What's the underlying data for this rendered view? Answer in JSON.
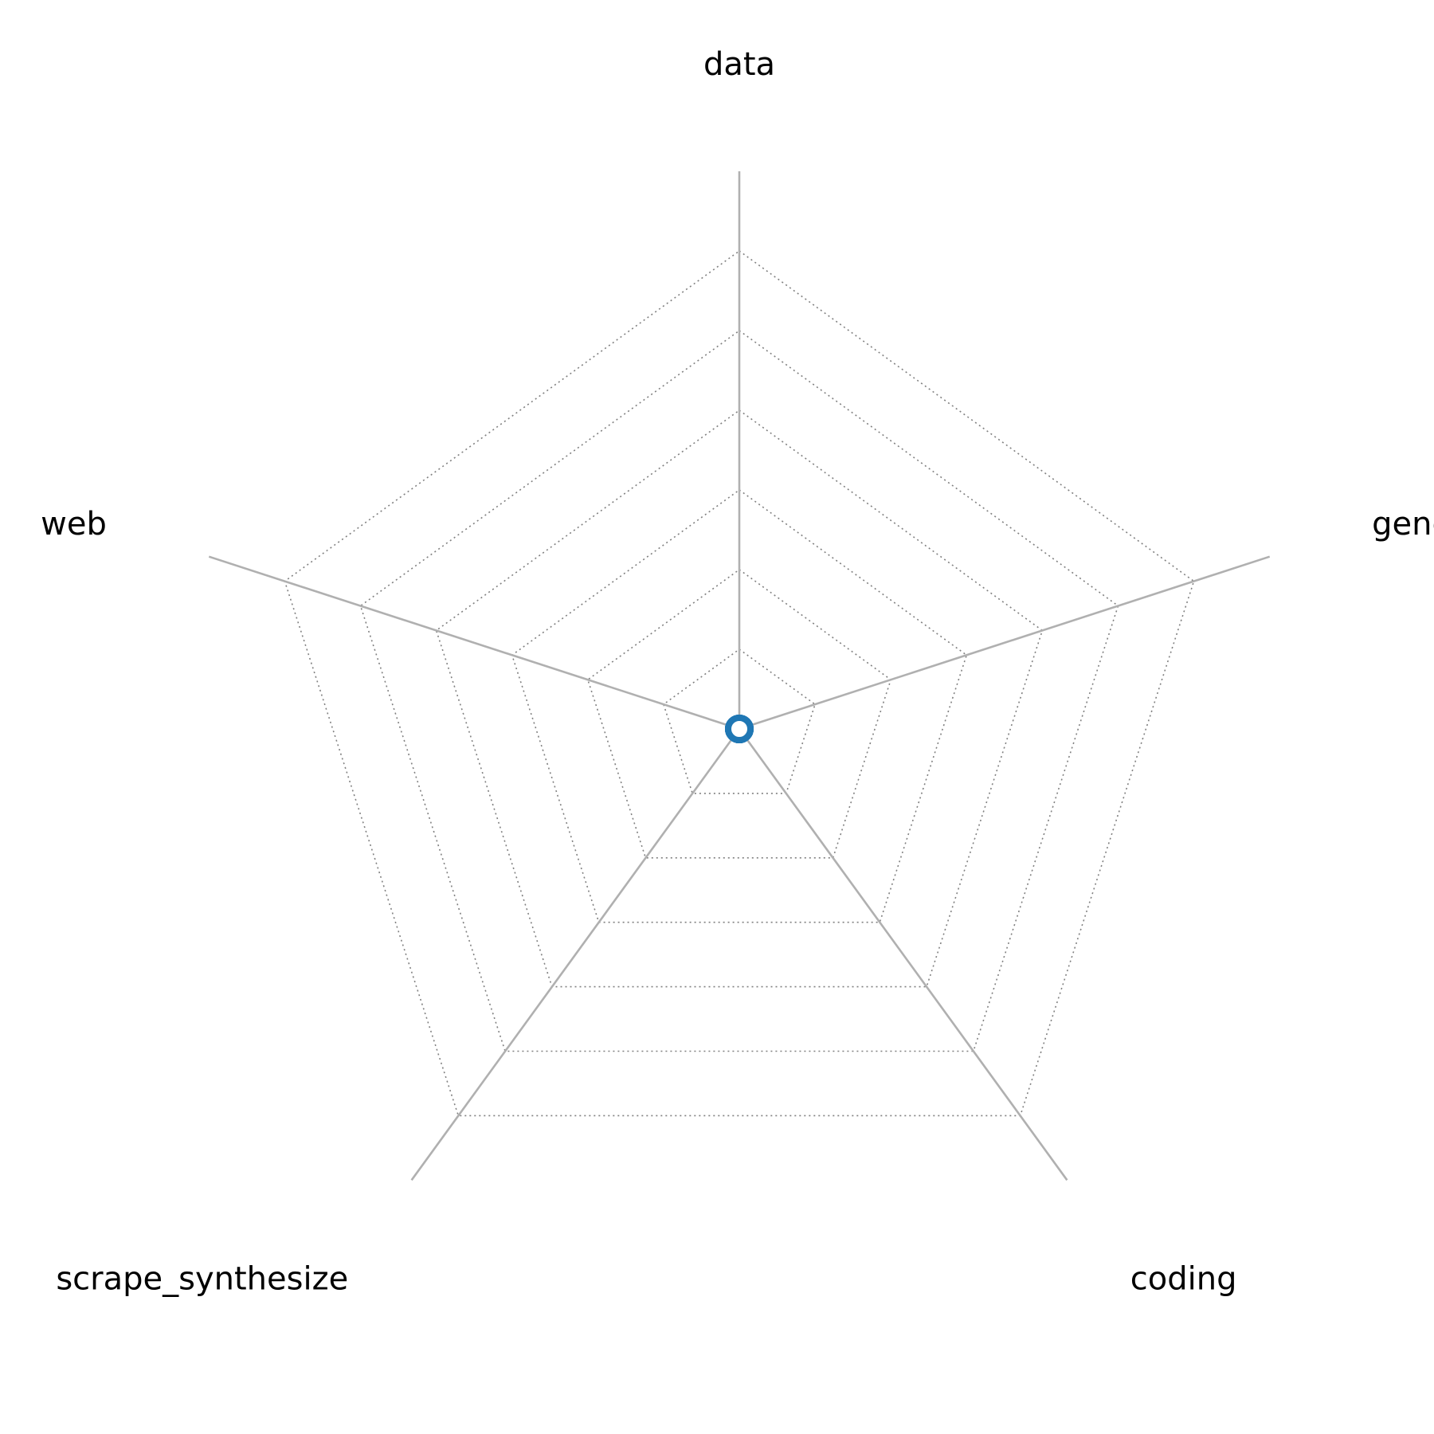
{
  "chart_data": {
    "type": "radar",
    "axes": [
      "data",
      "general",
      "coding",
      "scrape_synthesize",
      "web"
    ],
    "rmax": 7,
    "ring_count": 6,
    "grid": true,
    "series": [
      {
        "values": [
          0,
          0,
          0,
          0,
          0
        ],
        "color": "#1f77b4"
      }
    ]
  }
}
